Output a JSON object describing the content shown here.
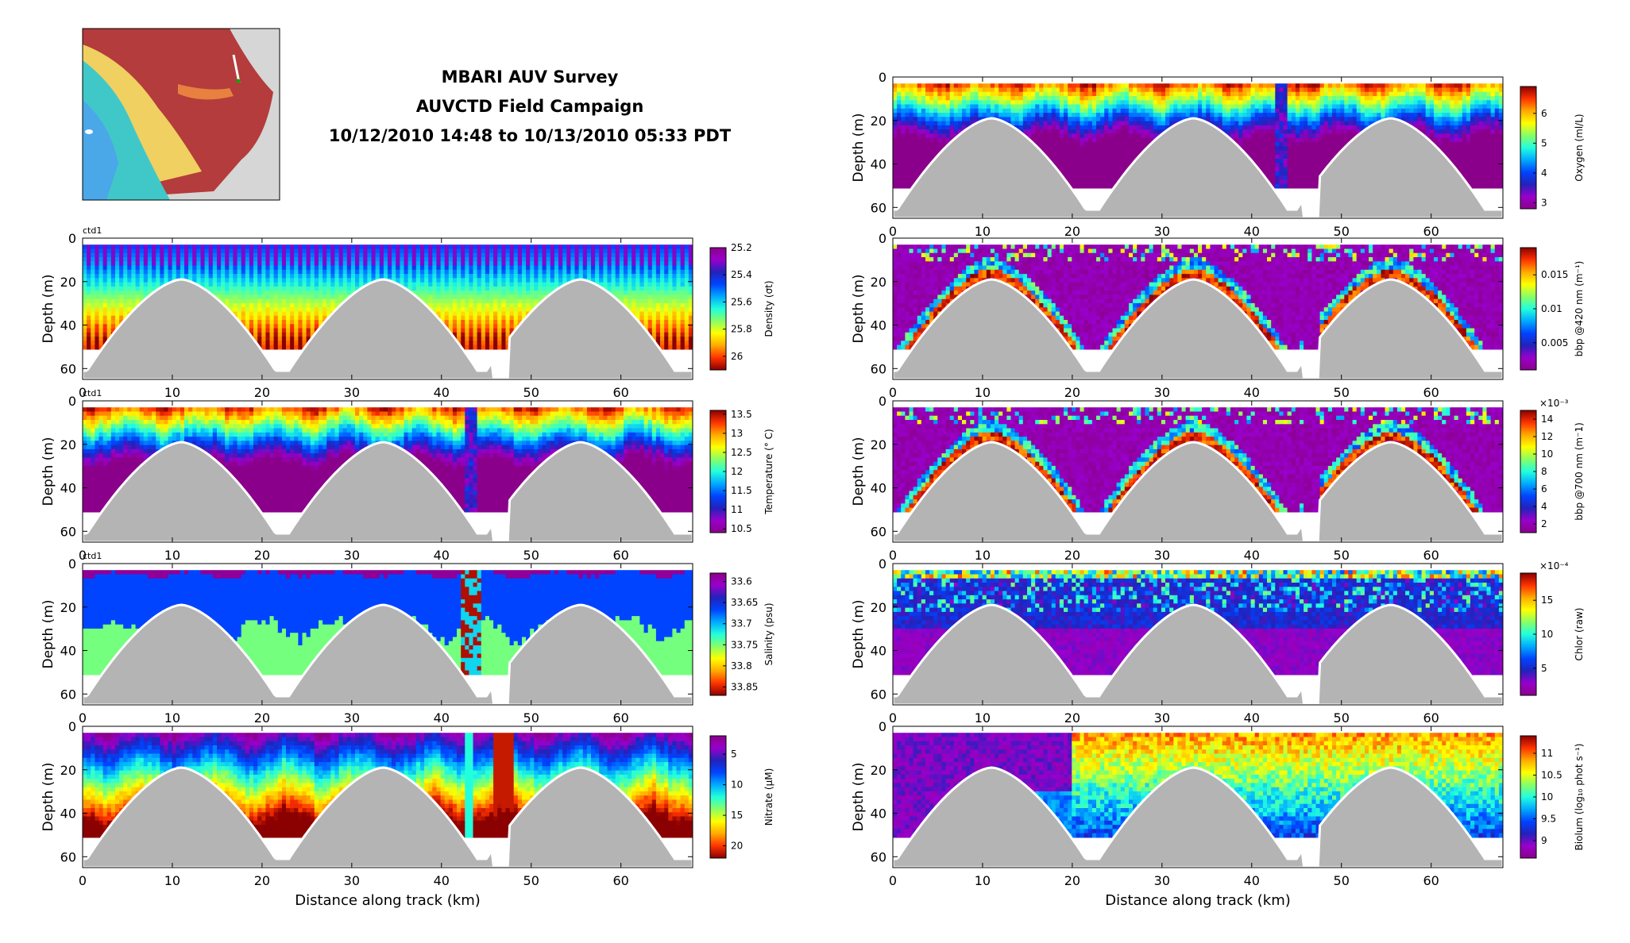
{
  "header": {
    "title_lines": [
      "MBARI AUV Survey",
      "AUVCTD Field Campaign",
      "10/12/2010 14:48 to 10/13/2010 05:33 PDT"
    ]
  },
  "map_inset": {
    "name": "bathymetry-map"
  },
  "colors": {
    "bottom_fill": "#b4b4b4",
    "colormap": [
      "#8b008b",
      "#9900cc",
      "#2222bb",
      "#0044ff",
      "#00aaff",
      "#22ffdd",
      "#88ff66",
      "#ffff00",
      "#ffaa00",
      "#ff3300",
      "#8b0000"
    ]
  },
  "chart_data": [
    {
      "type": "heatmap",
      "id": "density",
      "column": "left",
      "tag": "ctd1",
      "title": "",
      "xlabel": "",
      "ylabel": "Depth (m)",
      "xlim": [
        0,
        68
      ],
      "ylim": [
        65,
        0
      ],
      "x_ticks": [
        0,
        10,
        20,
        30,
        40,
        50,
        60
      ],
      "y_ticks": [
        0,
        20,
        40,
        60
      ],
      "colorbar": {
        "label": "Density (σt)",
        "range": [
          25.2,
          26.1
        ],
        "ticks": [
          "25.2",
          "25.4",
          "25.6",
          "25.8",
          "26"
        ],
        "reversed": true,
        "multiplier": ""
      },
      "field": "yo-stripes",
      "cutoff_dist": 10,
      "cutoff_max": 1
    },
    {
      "type": "heatmap",
      "id": "temperature",
      "column": "left",
      "tag": "ctd1",
      "title": "",
      "xlabel": "",
      "ylabel": "Depth (m)",
      "xlim": [
        0,
        68
      ],
      "ylim": [
        65,
        0
      ],
      "x_ticks": [
        0,
        10,
        20,
        30,
        40,
        50,
        60
      ],
      "y_ticks": [
        0,
        20,
        40,
        60
      ],
      "colorbar": {
        "label": "Temperature (° C)",
        "range": [
          10.4,
          13.6
        ],
        "ticks": [
          "13.5",
          "13",
          "12.5",
          "12",
          "11.5",
          "11",
          "10.5"
        ],
        "reversed": false,
        "multiplier": ""
      },
      "field": "warm-top",
      "cutoff_dist": 10,
      "cutoff_max": 1
    },
    {
      "type": "heatmap",
      "id": "salinity",
      "column": "left",
      "tag": "ctd1",
      "title": "",
      "xlabel": "",
      "ylabel": "Depth (m)",
      "xlim": [
        0,
        68
      ],
      "ylim": [
        65,
        0
      ],
      "x_ticks": [
        0,
        10,
        20,
        30,
        40,
        50,
        60
      ],
      "y_ticks": [
        0,
        20,
        40,
        60
      ],
      "colorbar": {
        "label": "Salinity (psu)",
        "range": [
          33.58,
          33.87
        ],
        "ticks": [
          "33.6",
          "33.65",
          "33.7",
          "33.75",
          "33.8",
          "33.85"
        ],
        "reversed": true,
        "multiplier": ""
      },
      "field": "banded",
      "cutoff_dist": 10,
      "cutoff_max": 1
    },
    {
      "type": "heatmap",
      "id": "nitrate",
      "column": "left",
      "tag": "",
      "title": "",
      "xlabel": "Distance along track (km)",
      "ylabel": "Depth (m)",
      "xlim": [
        0,
        68
      ],
      "ylim": [
        65,
        0
      ],
      "x_ticks": [
        0,
        10,
        20,
        30,
        40,
        50,
        60
      ],
      "y_ticks": [
        0,
        20,
        40,
        60
      ],
      "colorbar": {
        "label": "Nitrate (μM)",
        "range": [
          2,
          22
        ],
        "ticks": [
          "5",
          "10",
          "15",
          "20"
        ],
        "reversed": true,
        "multiplier": ""
      },
      "field": "cold-top",
      "cutoff_dist": 10,
      "cutoff_max": 1
    },
    {
      "type": "heatmap",
      "id": "oxygen",
      "column": "right",
      "tag": "",
      "title": "",
      "xlabel": "",
      "ylabel": "Depth (m)",
      "xlim": [
        0,
        68
      ],
      "ylim": [
        65,
        0
      ],
      "x_ticks": [
        0,
        10,
        20,
        30,
        40,
        50,
        60
      ],
      "y_ticks": [
        0,
        20,
        40,
        60
      ],
      "colorbar": {
        "label": "Oxygen (ml/L)",
        "range": [
          2.8,
          6.9
        ],
        "ticks": [
          "6",
          "5",
          "4",
          "3"
        ],
        "reversed": false,
        "multiplier": ""
      },
      "field": "warm-top",
      "cutoff_dist": 10,
      "cutoff_max": 1
    },
    {
      "type": "heatmap",
      "id": "bbp420",
      "column": "right",
      "tag": "",
      "title": "",
      "xlabel": "",
      "ylabel": "Depth (m)",
      "xlim": [
        0,
        68
      ],
      "ylim": [
        65,
        0
      ],
      "x_ticks": [
        0,
        10,
        20,
        30,
        40,
        50,
        60
      ],
      "y_ticks": [
        0,
        20,
        40,
        60
      ],
      "colorbar": {
        "label": "bbp @420 nm (m⁻¹)",
        "range": [
          0.001,
          0.019
        ],
        "ticks": [
          "0.015",
          "0.01",
          "0.005"
        ],
        "reversed": false,
        "multiplier": ""
      },
      "field": "ridge",
      "cutoff_dist": 10,
      "cutoff_max": 1
    },
    {
      "type": "heatmap",
      "id": "bbp700",
      "column": "right",
      "tag": "",
      "title": "",
      "xlabel": "",
      "ylabel": "Depth (m)",
      "xlim": [
        0,
        68
      ],
      "ylim": [
        65,
        0
      ],
      "x_ticks": [
        0,
        10,
        20,
        30,
        40,
        50,
        60
      ],
      "y_ticks": [
        0,
        20,
        40,
        60
      ],
      "colorbar": {
        "label": "bbp @700 nm (m⁻1)",
        "range": [
          1,
          15
        ],
        "ticks": [
          "14",
          "12",
          "10",
          "8",
          "6",
          "4",
          "2"
        ],
        "reversed": false,
        "multiplier": "×10⁻³"
      },
      "field": "ridge",
      "cutoff_dist": 10,
      "cutoff_max": 1
    },
    {
      "type": "heatmap",
      "id": "chlor",
      "column": "right",
      "tag": "",
      "title": "",
      "xlabel": "",
      "ylabel": "Depth (m)",
      "xlim": [
        0,
        68
      ],
      "ylim": [
        65,
        0
      ],
      "x_ticks": [
        0,
        10,
        20,
        30,
        40,
        50,
        60
      ],
      "y_ticks": [
        0,
        20,
        40,
        60
      ],
      "colorbar": {
        "label": "Chlor (raw)",
        "range": [
          1,
          19
        ],
        "ticks": [
          "15",
          "10",
          "5"
        ],
        "reversed": false,
        "multiplier": "×10⁻⁴"
      },
      "field": "chl",
      "cutoff_dist": 10,
      "cutoff_max": 1
    },
    {
      "type": "heatmap",
      "id": "biolum",
      "column": "right",
      "tag": "",
      "title": "",
      "xlabel": "Distance along track (km)",
      "ylabel": "Depth (m)",
      "xlim": [
        0,
        68
      ],
      "ylim": [
        65,
        0
      ],
      "x_ticks": [
        0,
        10,
        20,
        30,
        40,
        50,
        60
      ],
      "y_ticks": [
        0,
        20,
        40,
        60
      ],
      "colorbar": {
        "label": "Biolum (log₁₀ phot s⁻¹)",
        "range": [
          8.6,
          11.4
        ],
        "ticks": [
          "11",
          "10.5",
          "10",
          "9.5",
          "9"
        ],
        "reversed": false,
        "multiplier": ""
      },
      "field": "biolum",
      "cutoff_dist": 20,
      "cutoff_max": 0.5
    }
  ]
}
